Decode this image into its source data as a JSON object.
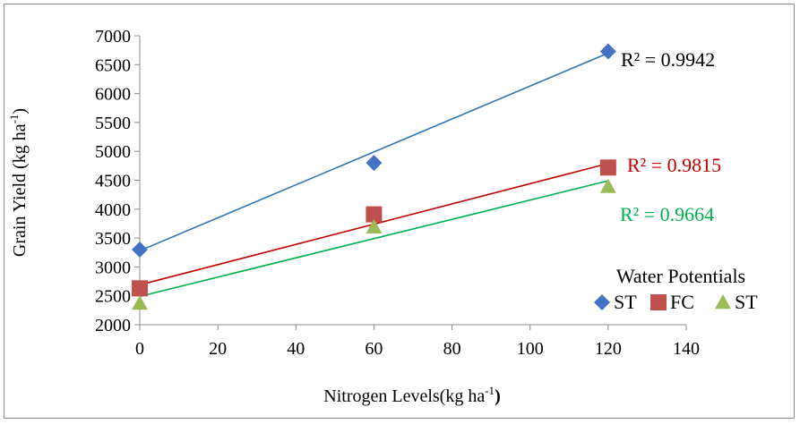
{
  "chart_data": {
    "type": "scatter",
    "title": "",
    "xlabel": "Nitrogen Levels(kg ha",
    "xlabel_sup": "-1",
    "xlabel_suffix": ")",
    "ylabel": "Grain Yield (kg ha",
    "ylabel_sup": "-1",
    "ylabel_suffix": ")",
    "xlim": [
      0,
      140
    ],
    "ylim": [
      2000,
      7000
    ],
    "x_ticks": [
      0,
      20,
      40,
      60,
      80,
      100,
      120,
      140
    ],
    "y_ticks": [
      2000,
      2500,
      3000,
      3500,
      4000,
      4500,
      5000,
      5500,
      6000,
      6500,
      7000
    ],
    "grid": false,
    "legend_title": "Water Potentials",
    "legend_position": "bottom-right",
    "series": [
      {
        "name": "ST",
        "marker": "diamond",
        "color": "#4472C4",
        "line_color": "#2E75B6",
        "x": [
          0,
          60,
          120
        ],
        "y": [
          3300,
          4800,
          6730
        ],
        "trendline": {
          "y_at_xmin": 3280,
          "y_at_xmax": 6700
        },
        "r2_label": "R² = 0.9942",
        "r2_color": "#000000"
      },
      {
        "name": "FC",
        "marker": "square",
        "color": "#C0504D",
        "line_color": "#C00000",
        "x": [
          0,
          60,
          120
        ],
        "y": [
          2630,
          3910,
          4720
        ],
        "trendline": {
          "y_at_xmin": 2690,
          "y_at_xmax": 4790
        },
        "r2_label": "R² = 0.9815",
        "r2_color": "#C00000"
      },
      {
        "name": "ST",
        "marker": "triangle",
        "color": "#9BBB59",
        "line_color": "#00B050",
        "x": [
          0,
          60,
          120
        ],
        "y": [
          2370,
          3690,
          4390
        ],
        "trendline": {
          "y_at_xmin": 2490,
          "y_at_xmax": 4490
        },
        "r2_label": "R² = 0.9664",
        "r2_color": "#00B050"
      }
    ]
  }
}
